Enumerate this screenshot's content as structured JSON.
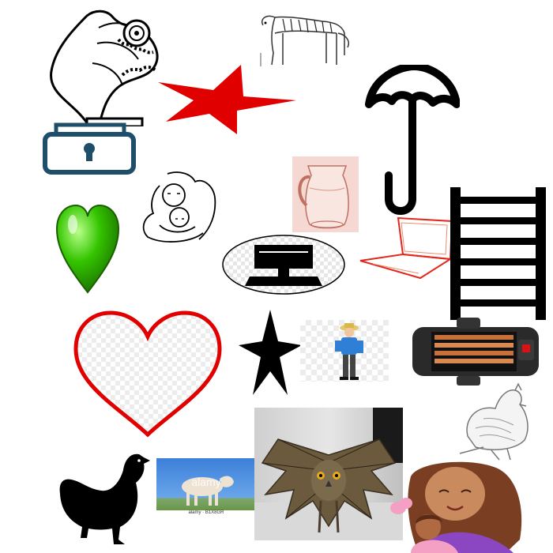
{
  "items": [
    "gramophone",
    "padlock",
    "red-star",
    "tiger",
    "umbrella",
    "mother-and-child-sketch",
    "glass-pitcher",
    "green-heart",
    "computer-monitor",
    "laptop-outline",
    "ladder",
    "red-heart",
    "black-star",
    "man-with-hat",
    "space-heater",
    "rooster-sketch",
    "hen-silhouette",
    "lamb-photo",
    "owl-photo",
    "mother-and-child-cartoon"
  ],
  "lamb_photo": {
    "watermark": "alamy",
    "footer": "alamy · B1X8GR"
  },
  "colors": {
    "star_red": "#e00000",
    "heart_green": "#34c400",
    "heart_red": "#e00000",
    "lock_blue": "#1f4e6b",
    "laptop_red": "#e0281c",
    "heater_copper": "#c8703a"
  }
}
